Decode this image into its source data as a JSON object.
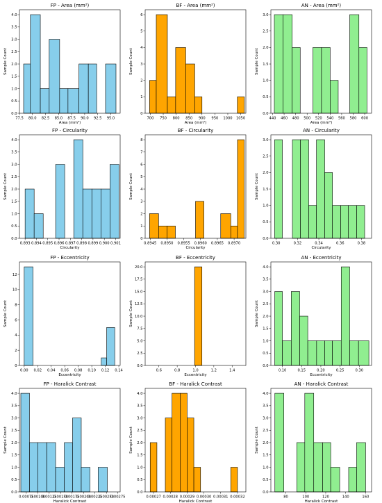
{
  "colors": {
    "FP": "#87ceeb",
    "BF": "#ffa500",
    "AN": "#90ee90"
  },
  "chart_data": [
    {
      "type": "bar",
      "title": "FP - Area (mm²)",
      "xlabel": "Area (mm²)",
      "ylabel": "Sample Count",
      "color": "FP",
      "xlim": [
        77.5,
        96.8
      ],
      "ylim": [
        0,
        4.2
      ],
      "xticks": [
        77.5,
        80.0,
        82.5,
        85.0,
        87.5,
        90.0,
        92.5,
        95.0
      ],
      "xtick_labels": [
        "77.5",
        "80.0",
        "82.5",
        "85.0",
        "87.5",
        "90.0",
        "92.5",
        "95.0"
      ],
      "yticks": [
        0,
        0.5,
        1.0,
        1.5,
        2.0,
        2.5,
        3.0,
        3.5,
        4.0
      ],
      "ytick_labels": [
        "0.0",
        "0.5",
        "1.0",
        "1.5",
        "2.0",
        "2.5",
        "3.0",
        "3.5",
        "4.0"
      ],
      "bins": [
        [
          78.3,
          79.6,
          2
        ],
        [
          79.6,
          81.5,
          4
        ],
        [
          81.5,
          83.2,
          1
        ],
        [
          83.2,
          85.2,
          3
        ],
        [
          85.2,
          86.8,
          1
        ],
        [
          86.8,
          88.9,
          1
        ],
        [
          88.9,
          90.7,
          2
        ],
        [
          90.7,
          92.3,
          2
        ],
        [
          94.0,
          96.0,
          2
        ]
      ]
    },
    {
      "type": "bar",
      "title": "BF - Area (mm²)",
      "xlabel": "Area (mm²)",
      "ylabel": "Sample Count",
      "color": "BF",
      "xlim": [
        680,
        1070
      ],
      "ylim": [
        0,
        6.3
      ],
      "xticks": [
        700,
        750,
        800,
        850,
        900,
        950,
        1000,
        1050
      ],
      "xtick_labels": [
        "700",
        "750",
        "800",
        "850",
        "900",
        "950",
        "1000",
        "1050"
      ],
      "yticks": [
        0,
        1,
        2,
        3,
        4,
        5,
        6
      ],
      "ytick_labels": [
        "0",
        "1",
        "2",
        "3",
        "4",
        "5",
        "6"
      ],
      "bins": [
        [
          697,
          723,
          2
        ],
        [
          723,
          766,
          6
        ],
        [
          766,
          798,
          1
        ],
        [
          798,
          837,
          4
        ],
        [
          837,
          872,
          3
        ],
        [
          872,
          900,
          1
        ],
        [
          1037,
          1064,
          1
        ]
      ]
    },
    {
      "type": "bar",
      "title": "AN - Area (mm²)",
      "xlabel": "Area (mm²)",
      "ylabel": "Sample Count",
      "color": "AN",
      "xlim": [
        437,
        612
      ],
      "ylim": [
        0,
        3.15
      ],
      "xticks": [
        440,
        460,
        480,
        500,
        520,
        540,
        560,
        580,
        600
      ],
      "xtick_labels": [
        "440",
        "460",
        "480",
        "500",
        "520",
        "540",
        "560",
        "580",
        "600"
      ],
      "yticks": [
        0,
        0.5,
        1.0,
        1.5,
        2.0,
        2.5,
        3.0
      ],
      "ytick_labels": [
        "0.0",
        "0.5",
        "1.0",
        "1.5",
        "2.0",
        "2.5",
        "3.0"
      ],
      "bins": [
        [
          443,
          458,
          3
        ],
        [
          458,
          474,
          3
        ],
        [
          474,
          488,
          2
        ],
        [
          510,
          525,
          2
        ],
        [
          525,
          540,
          2
        ],
        [
          540,
          554,
          1
        ],
        [
          574,
          590,
          3
        ],
        [
          590,
          604,
          2
        ]
      ]
    },
    {
      "type": "bar",
      "title": "FP - Circularity",
      "xlabel": "Circularity",
      "ylabel": "Sample Count",
      "color": "FP",
      "xlim": [
        0.8925,
        0.9014
      ],
      "ylim": [
        0,
        4.2
      ],
      "xticks": [
        0.893,
        0.894,
        0.895,
        0.896,
        0.897,
        0.898,
        0.899,
        0.9,
        0.901
      ],
      "xtick_labels": [
        "0.893",
        "0.894",
        "0.895",
        "0.896",
        "0.897",
        "0.898",
        "0.899",
        "0.900",
        "0.901"
      ],
      "yticks": [
        0,
        0.5,
        1.0,
        1.5,
        2.0,
        2.5,
        3.0,
        3.5,
        4.0
      ],
      "ytick_labels": [
        "0.0",
        "0.5",
        "1.0",
        "1.5",
        "2.0",
        "2.5",
        "3.0",
        "3.5",
        "4.0"
      ],
      "bins": [
        [
          0.893,
          0.8938,
          2
        ],
        [
          0.8938,
          0.8946,
          1
        ],
        [
          0.8957,
          0.8965,
          3
        ],
        [
          0.8973,
          0.8981,
          4
        ],
        [
          0.8981,
          0.8989,
          2
        ],
        [
          0.8989,
          0.8997,
          2
        ],
        [
          0.8997,
          0.9005,
          2
        ],
        [
          0.9005,
          0.9013,
          3
        ]
      ]
    },
    {
      "type": "bar",
      "title": "BF - Circularity",
      "xlabel": "Circularity",
      "ylabel": "Sample Count",
      "color": "BF",
      "xlim": [
        0.89435,
        0.89735
      ],
      "ylim": [
        0,
        8.4
      ],
      "xticks": [
        0.8945,
        0.895,
        0.8955,
        0.896,
        0.8965,
        0.897
      ],
      "xtick_labels": [
        "0.8945",
        "0.8950",
        "0.8955",
        "0.8960",
        "0.8965",
        "0.8970"
      ],
      "yticks": [
        0,
        1,
        2,
        3,
        4,
        5,
        6,
        7,
        8
      ],
      "ytick_labels": [
        "0",
        "1",
        "2",
        "3",
        "4",
        "5",
        "6",
        "7",
        "8"
      ],
      "bins": [
        [
          0.89448,
          0.89475,
          2
        ],
        [
          0.89475,
          0.895,
          1
        ],
        [
          0.895,
          0.89525,
          1
        ],
        [
          0.89585,
          0.8961,
          3
        ],
        [
          0.8966,
          0.8969,
          2
        ],
        [
          0.8969,
          0.8971,
          1
        ],
        [
          0.8971,
          0.8973,
          8
        ]
      ]
    },
    {
      "type": "bar",
      "title": "AN - Circularity",
      "xlabel": "Circularity",
      "ylabel": "Sample Count",
      "color": "AN",
      "xlim": [
        0.295,
        0.3895
      ],
      "ylim": [
        0,
        3.15
      ],
      "xticks": [
        0.3,
        0.32,
        0.34,
        0.36,
        0.38
      ],
      "xtick_labels": [
        "0.30",
        "0.32",
        "0.34",
        "0.36",
        "0.38"
      ],
      "yticks": [
        0,
        0.5,
        1.0,
        1.5,
        2.0,
        2.5,
        3.0
      ],
      "ytick_labels": [
        "0.0",
        "0.5",
        "1.0",
        "1.5",
        "2.0",
        "2.5",
        "3.0"
      ],
      "bins": [
        [
          0.2985,
          0.3058,
          3
        ],
        [
          0.3152,
          0.3228,
          3
        ],
        [
          0.3228,
          0.3305,
          3
        ],
        [
          0.3305,
          0.3378,
          1
        ],
        [
          0.3378,
          0.3455,
          3
        ],
        [
          0.3455,
          0.3528,
          2
        ],
        [
          0.3528,
          0.3605,
          1
        ],
        [
          0.3605,
          0.3678,
          1
        ],
        [
          0.3678,
          0.3755,
          1
        ],
        [
          0.3755,
          0.383,
          1
        ]
      ]
    },
    {
      "type": "bar",
      "title": "FP - Eccentricity",
      "xlabel": "Eccentricity",
      "ylabel": "Sample Count",
      "color": "FP",
      "xlim": [
        -0.007,
        0.142
      ],
      "ylim": [
        0,
        13.65
      ],
      "xticks": [
        0,
        0.02,
        0.04,
        0.06,
        0.08,
        0.1,
        0.12,
        0.14
      ],
      "xtick_labels": [
        "0.00",
        "0.02",
        "0.04",
        "0.06",
        "0.08",
        "0.10",
        "0.12",
        "0.14"
      ],
      "yticks": [
        0,
        2,
        4,
        6,
        8,
        10,
        12
      ],
      "ytick_labels": [
        "0",
        "2",
        "4",
        "6",
        "8",
        "10",
        "12"
      ],
      "bins": [
        [
          0,
          0.013,
          13
        ],
        [
          0.114,
          0.122,
          1
        ],
        [
          0.122,
          0.134,
          5
        ]
      ]
    },
    {
      "type": "bar",
      "title": "BF - Eccentricity",
      "xlabel": "Eccentricity",
      "ylabel": "Sample Count",
      "color": "BF",
      "xlim": [
        0.45,
        1.55
      ],
      "ylim": [
        0,
        21
      ],
      "xticks": [
        0.6,
        0.8,
        1.0,
        1.2,
        1.4
      ],
      "xtick_labels": [
        "0.6",
        "0.8",
        "1.0",
        "1.2",
        "1.4"
      ],
      "yticks": [
        0,
        2.5,
        5.0,
        7.5,
        10.0,
        12.5,
        15.0,
        17.5,
        20.0
      ],
      "ytick_labels": [
        "0.0",
        "2.5",
        "5.0",
        "7.5",
        "10.0",
        "12.5",
        "15.0",
        "17.5",
        "20.0"
      ],
      "bins": [
        [
          0.99,
          1.07,
          20
        ]
      ]
    },
    {
      "type": "bar",
      "title": "AN - Eccentricity",
      "xlabel": "Eccentricity",
      "ylabel": "Sample Count",
      "color": "AN",
      "xlim": [
        0.07,
        0.332
      ],
      "ylim": [
        0,
        4.2
      ],
      "xticks": [
        0.1,
        0.15,
        0.2,
        0.25,
        0.3
      ],
      "xtick_labels": [
        "0.10",
        "0.15",
        "0.20",
        "0.25",
        "0.30"
      ],
      "yticks": [
        0,
        0.5,
        1.0,
        1.5,
        2.0,
        2.5,
        3.0,
        3.5,
        4.0
      ],
      "ytick_labels": [
        "0.0",
        "0.5",
        "1.0",
        "1.5",
        "2.0",
        "2.5",
        "3.0",
        "3.5",
        "4.0"
      ],
      "bins": [
        [
          0.08,
          0.1,
          3
        ],
        [
          0.1,
          0.123,
          1
        ],
        [
          0.123,
          0.145,
          3
        ],
        [
          0.145,
          0.166,
          2
        ],
        [
          0.166,
          0.189,
          1
        ],
        [
          0.189,
          0.21,
          1
        ],
        [
          0.21,
          0.23,
          1
        ],
        [
          0.23,
          0.253,
          1
        ],
        [
          0.253,
          0.275,
          4
        ],
        [
          0.275,
          0.298,
          1
        ],
        [
          0.298,
          0.325,
          1
        ]
      ]
    },
    {
      "type": "bar",
      "title": "FP - Haralick Contrast",
      "xlabel": "Haralick Contrast",
      "ylabel": "Sample Count",
      "color": "FP",
      "xlim": [
        0.0006,
        0.0028
      ],
      "ylim": [
        0,
        4.2
      ],
      "xticks": [
        0.00075,
        0.001,
        0.00125,
        0.0015,
        0.00175,
        0.002,
        0.00225,
        0.0025,
        0.00275
      ],
      "xtick_labels": [
        "0.00075",
        "0.00100",
        "0.00125",
        "0.00150",
        "0.00175",
        "0.00200",
        "0.00225",
        "0.00250",
        "0.00275"
      ],
      "yticks": [
        0,
        0.5,
        1.0,
        1.5,
        2.0,
        2.5,
        3.0,
        3.5,
        4.0
      ],
      "ytick_labels": [
        "0.0",
        "0.5",
        "1.0",
        "1.5",
        "2.0",
        "2.5",
        "3.0",
        "3.5",
        "4.0"
      ],
      "bins": [
        [
          0.00063,
          0.00082,
          4
        ],
        [
          0.00082,
          0.001,
          2
        ],
        [
          0.001,
          0.0012,
          2
        ],
        [
          0.0012,
          0.00139,
          2
        ],
        [
          0.00139,
          0.00158,
          1
        ],
        [
          0.00158,
          0.00176,
          2
        ],
        [
          0.00176,
          0.00195,
          3
        ],
        [
          0.00195,
          0.00214,
          1
        ],
        [
          0.00232,
          0.00252,
          1
        ]
      ]
    },
    {
      "type": "bar",
      "title": "BF - Haralick Contrast",
      "xlabel": "Haralick Contrast",
      "ylabel": "Sample Count",
      "color": "BF",
      "xlim": [
        0.000265,
        0.000325
      ],
      "ylim": [
        0,
        4.2
      ],
      "xticks": [
        0.00027,
        0.00028,
        0.00029,
        0.0003,
        0.00031,
        0.00032
      ],
      "xtick_labels": [
        "0.00027",
        "0.00028",
        "0.00029",
        "0.00030",
        "0.00031",
        "0.00032"
      ],
      "yticks": [
        0,
        0.5,
        1.0,
        1.5,
        2.0,
        2.5,
        3.0,
        3.5,
        4.0
      ],
      "ytick_labels": [
        "0.0",
        "0.5",
        "1.0",
        "1.5",
        "2.0",
        "2.5",
        "3.0",
        "3.5",
        "4.0"
      ],
      "bins": [
        [
          0.000268,
          0.000272,
          2
        ],
        [
          0.000277,
          0.000281,
          3
        ],
        [
          0.000281,
          0.000286,
          4
        ],
        [
          0.000286,
          0.00029,
          4
        ],
        [
          0.00029,
          0.000294,
          3
        ],
        [
          0.000294,
          0.000298,
          1
        ],
        [
          0.000316,
          0.00032,
          1
        ]
      ]
    },
    {
      "type": "bar",
      "title": "AN - Haralick Contrast",
      "xlabel": "Haralick Contrast",
      "ylabel": "Sample Count",
      "color": "AN",
      "xlim": [
        65,
        166
      ],
      "ylim": [
        0,
        4.2
      ],
      "xticks": [
        80,
        100,
        120,
        140,
        160
      ],
      "xtick_labels": [
        "80",
        "100",
        "120",
        "140",
        "160"
      ],
      "yticks": [
        0,
        0.5,
        1.0,
        1.5,
        2.0,
        2.5,
        3.0,
        3.5,
        4.0
      ],
      "ytick_labels": [
        "0.0",
        "0.5",
        "1.0",
        "1.5",
        "2.0",
        "2.5",
        "3.0",
        "3.5",
        "4.0"
      ],
      "bins": [
        [
          69,
          78,
          4
        ],
        [
          91,
          99,
          2
        ],
        [
          99,
          108,
          4
        ],
        [
          108,
          117,
          2
        ],
        [
          117,
          125,
          2
        ],
        [
          125,
          134,
          1
        ],
        [
          143,
          151,
          1
        ],
        [
          151,
          160,
          2
        ]
      ]
    }
  ]
}
